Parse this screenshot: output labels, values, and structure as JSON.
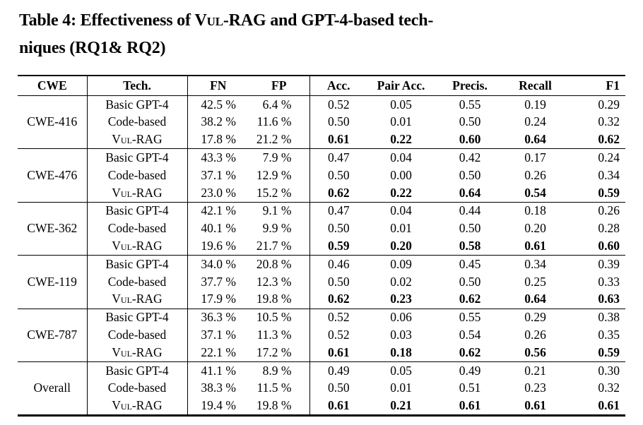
{
  "title": {
    "line1_pre": "Table 4: Effectiveness of ",
    "vul_rag": "Vul-RAG",
    "line1_post": " and GPT-4-based tech-",
    "line2": "niques (RQ1& RQ2)"
  },
  "colors": {
    "text": "#000000",
    "background": "#ffffff",
    "rule": "#000000"
  },
  "table": {
    "columns": [
      "CWE",
      "Tech.",
      "FN",
      "FP",
      "Acc.",
      "Pair Acc.",
      "Precis.",
      "Recall",
      "F1"
    ],
    "groups": [
      {
        "cwe": "CWE-416",
        "rows": [
          {
            "tech": "Basic GPT-4",
            "fn": "42.5 %",
            "fp": "6.4 %",
            "acc": "0.52",
            "pair_acc": "0.05",
            "precis": "0.55",
            "recall": "0.19",
            "f1": "0.29",
            "bold": false
          },
          {
            "tech": "Code-based",
            "fn": "38.2 %",
            "fp": "11.6 %",
            "acc": "0.50",
            "pair_acc": "0.01",
            "precis": "0.50",
            "recall": "0.24",
            "f1": "0.32",
            "bold": false
          },
          {
            "tech": "Vul-RAG",
            "fn": "17.8 %",
            "fp": "21.2 %",
            "acc": "0.61",
            "pair_acc": "0.22",
            "precis": "0.60",
            "recall": "0.64",
            "f1": "0.62",
            "bold": true
          }
        ]
      },
      {
        "cwe": "CWE-476",
        "rows": [
          {
            "tech": "Basic GPT-4",
            "fn": "43.3 %",
            "fp": "7.9 %",
            "acc": "0.47",
            "pair_acc": "0.04",
            "precis": "0.42",
            "recall": "0.17",
            "f1": "0.24",
            "bold": false
          },
          {
            "tech": "Code-based",
            "fn": "37.1 %",
            "fp": "12.9 %",
            "acc": "0.50",
            "pair_acc": "0.00",
            "precis": "0.50",
            "recall": "0.26",
            "f1": "0.34",
            "bold": false
          },
          {
            "tech": "Vul-RAG",
            "fn": "23.0 %",
            "fp": "15.2 %",
            "acc": "0.62",
            "pair_acc": "0.22",
            "precis": "0.64",
            "recall": "0.54",
            "f1": "0.59",
            "bold": true
          }
        ]
      },
      {
        "cwe": "CWE-362",
        "rows": [
          {
            "tech": "Basic GPT-4",
            "fn": "42.1 %",
            "fp": "9.1 %",
            "acc": "0.47",
            "pair_acc": "0.04",
            "precis": "0.44",
            "recall": "0.18",
            "f1": "0.26",
            "bold": false
          },
          {
            "tech": "Code-based",
            "fn": "40.1 %",
            "fp": "9.9 %",
            "acc": "0.50",
            "pair_acc": "0.01",
            "precis": "0.50",
            "recall": "0.20",
            "f1": "0.28",
            "bold": false
          },
          {
            "tech": "Vul-RAG",
            "fn": "19.6 %",
            "fp": "21.7 %",
            "acc": "0.59",
            "pair_acc": "0.20",
            "precis": "0.58",
            "recall": "0.61",
            "f1": "0.60",
            "bold": true
          }
        ]
      },
      {
        "cwe": "CWE-119",
        "rows": [
          {
            "tech": "Basic GPT-4",
            "fn": "34.0 %",
            "fp": "20.8 %",
            "acc": "0.46",
            "pair_acc": "0.09",
            "precis": "0.45",
            "recall": "0.34",
            "f1": "0.39",
            "bold": false
          },
          {
            "tech": "Code-based",
            "fn": "37.7 %",
            "fp": "12.3 %",
            "acc": "0.50",
            "pair_acc": "0.02",
            "precis": "0.50",
            "recall": "0.25",
            "f1": "0.33",
            "bold": false
          },
          {
            "tech": "Vul-RAG",
            "fn": "17.9 %",
            "fp": "19.8 %",
            "acc": "0.62",
            "pair_acc": "0.23",
            "precis": "0.62",
            "recall": "0.64",
            "f1": "0.63",
            "bold": true
          }
        ]
      },
      {
        "cwe": "CWE-787",
        "rows": [
          {
            "tech": "Basic GPT-4",
            "fn": "36.3 %",
            "fp": "10.5 %",
            "acc": "0.52",
            "pair_acc": "0.06",
            "precis": "0.55",
            "recall": "0.29",
            "f1": "0.38",
            "bold": false
          },
          {
            "tech": "Code-based",
            "fn": "37.1 %",
            "fp": "11.3 %",
            "acc": "0.52",
            "pair_acc": "0.03",
            "precis": "0.54",
            "recall": "0.26",
            "f1": "0.35",
            "bold": false
          },
          {
            "tech": "Vul-RAG",
            "fn": "22.1 %",
            "fp": "17.2 %",
            "acc": "0.61",
            "pair_acc": "0.18",
            "precis": "0.62",
            "recall": "0.56",
            "f1": "0.59",
            "bold": true
          }
        ]
      },
      {
        "cwe": "Overall",
        "rows": [
          {
            "tech": "Basic GPT-4",
            "fn": "41.1 %",
            "fp": "8.9 %",
            "acc": "0.49",
            "pair_acc": "0.05",
            "precis": "0.49",
            "recall": "0.21",
            "f1": "0.30",
            "bold": false
          },
          {
            "tech": "Code-based",
            "fn": "38.3 %",
            "fp": "11.5 %",
            "acc": "0.50",
            "pair_acc": "0.01",
            "precis": "0.51",
            "recall": "0.23",
            "f1": "0.32",
            "bold": false
          },
          {
            "tech": "Vul-RAG",
            "fn": "19.4 %",
            "fp": "19.8 %",
            "acc": "0.61",
            "pair_acc": "0.21",
            "precis": "0.61",
            "recall": "0.61",
            "f1": "0.61",
            "bold": true
          }
        ]
      }
    ]
  }
}
